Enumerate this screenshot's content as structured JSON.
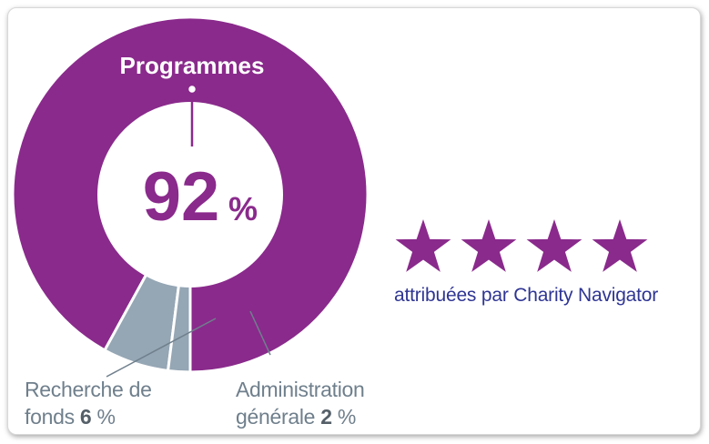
{
  "chart_data": {
    "type": "pie",
    "style": "donut",
    "slices": [
      {
        "label": "Programmes",
        "value": 92,
        "color": "#8a2a8c"
      },
      {
        "label": "Recherche de fonds",
        "value": 6,
        "color": "#95a6b4"
      },
      {
        "label": "Administration générale",
        "value": 2,
        "color": "#95a6b4"
      }
    ],
    "center_label": "Programmes",
    "center_value": "92",
    "center_unit": "%"
  },
  "labels": {
    "fund_line1": "Recherche de",
    "fund_line2": "fonds",
    "fund_value": "6",
    "fund_unit": "%",
    "admin_line1": "Administration",
    "admin_line2": "générale",
    "admin_value": "2",
    "admin_unit": "%"
  },
  "rating": {
    "stars": 4,
    "star_color": "#8a2a8c",
    "caption": "attribuées par Charity Navigator"
  },
  "colors": {
    "purple": "#8a2a8c",
    "gray": "#95a6b4",
    "navy": "#2f3593"
  }
}
